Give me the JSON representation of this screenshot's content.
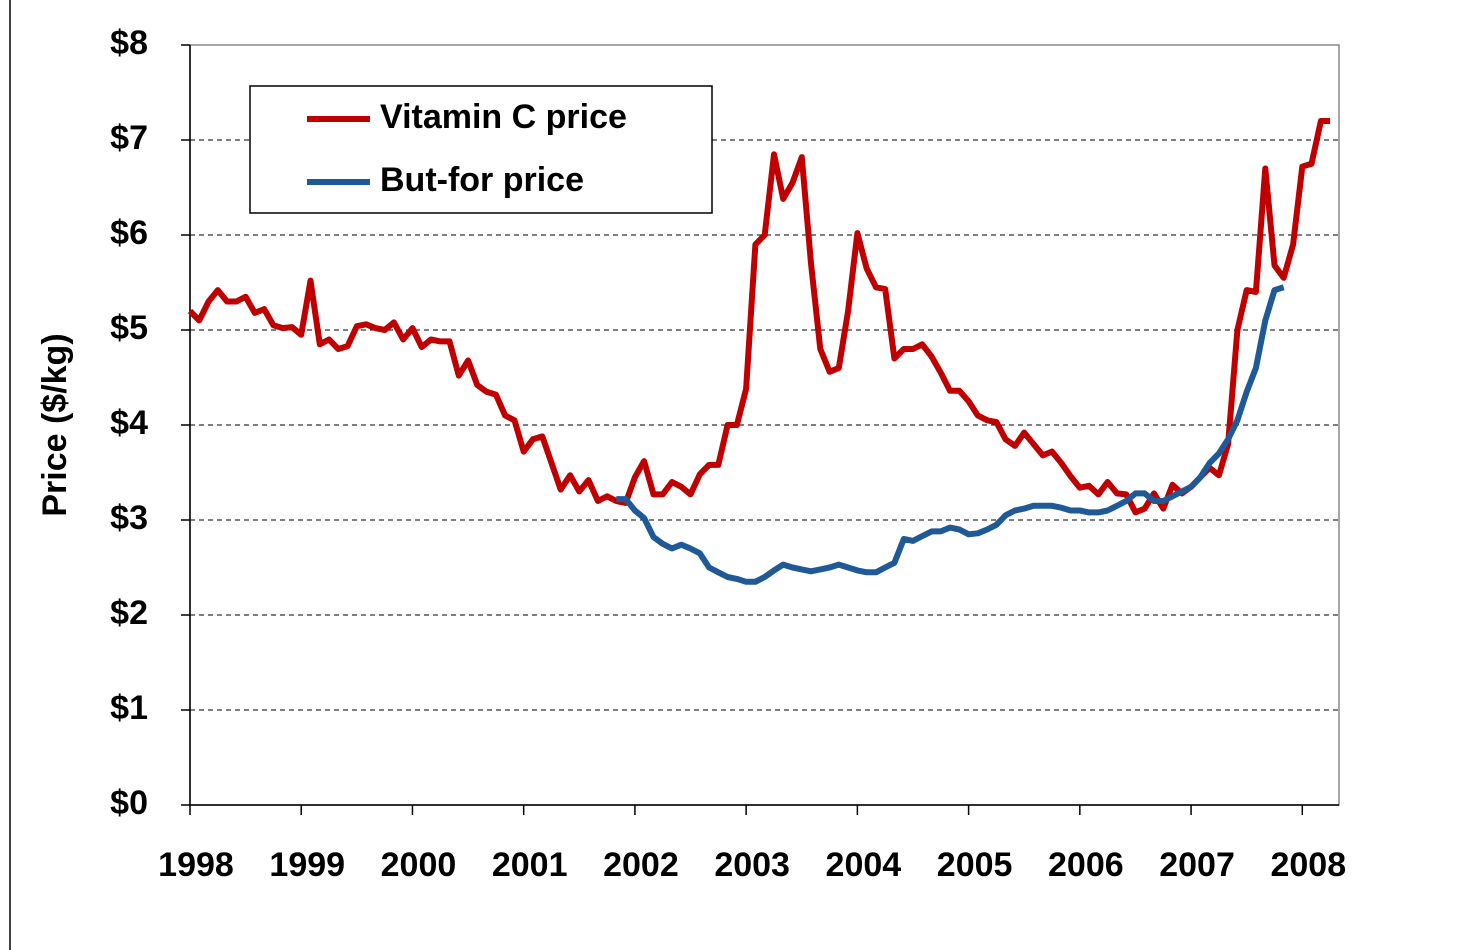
{
  "chart_data": {
    "type": "line",
    "x": [
      1998,
      1998.083,
      1998.167,
      1998.25,
      1998.333,
      1998.417,
      1998.5,
      1998.583,
      1998.667,
      1998.75,
      1998.833,
      1998.917,
      1999,
      1999.083,
      1999.167,
      1999.25,
      1999.333,
      1999.417,
      1999.5,
      1999.583,
      1999.667,
      1999.75,
      1999.833,
      1999.917,
      2000,
      2000.083,
      2000.167,
      2000.25,
      2000.333,
      2000.417,
      2000.5,
      2000.583,
      2000.667,
      2000.75,
      2000.833,
      2000.917,
      2001,
      2001.083,
      2001.167,
      2001.25,
      2001.333,
      2001.417,
      2001.5,
      2001.583,
      2001.667,
      2001.75,
      2001.833,
      2001.917,
      2002,
      2002.083,
      2002.167,
      2002.25,
      2002.333,
      2002.417,
      2002.5,
      2002.583,
      2002.667,
      2002.75,
      2002.833,
      2002.917,
      2003,
      2003.083,
      2003.167,
      2003.25,
      2003.333,
      2003.417,
      2003.5,
      2003.583,
      2003.667,
      2003.75,
      2003.833,
      2003.917,
      2004,
      2004.083,
      2004.167,
      2004.25,
      2004.333,
      2004.417,
      2004.5,
      2004.583,
      2004.667,
      2004.75,
      2004.833,
      2004.917,
      2005,
      2005.083,
      2005.167,
      2005.25,
      2005.333,
      2005.417,
      2005.5,
      2005.583,
      2005.667,
      2005.75,
      2005.833,
      2005.917,
      2006,
      2006.083,
      2006.167,
      2006.25,
      2006.333,
      2006.417,
      2006.5,
      2006.583,
      2006.667,
      2006.75,
      2006.833,
      2006.917,
      2007,
      2007.083,
      2007.167,
      2007.25,
      2007.333,
      2007.417,
      2007.5,
      2007.583,
      2007.667,
      2007.75,
      2007.833,
      2007.917,
      2008,
      2008.083,
      2008.167,
      2008.25
    ],
    "series": [
      {
        "name": "Vitamin C price",
        "color": "#c00000",
        "values": [
          5.2,
          5.1,
          5.3,
          5.42,
          5.3,
          5.3,
          5.35,
          5.18,
          5.22,
          5.05,
          5.02,
          5.03,
          4.95,
          5.52,
          4.85,
          4.9,
          4.8,
          4.83,
          5.04,
          5.06,
          5.02,
          5.0,
          5.08,
          4.9,
          5.02,
          4.82,
          4.9,
          4.88,
          4.88,
          4.52,
          4.68,
          4.42,
          4.35,
          4.32,
          4.1,
          4.05,
          3.72,
          3.85,
          3.88,
          3.6,
          3.32,
          3.47,
          3.3,
          3.42,
          3.2,
          3.25,
          3.2,
          3.18,
          3.45,
          3.62,
          3.27,
          3.27,
          3.4,
          3.35,
          3.27,
          3.48,
          3.58,
          3.58,
          4.0,
          4.0,
          4.38,
          5.9,
          6.0,
          6.85,
          6.38,
          6.55,
          6.82,
          5.7,
          4.8,
          4.56,
          4.6,
          5.2,
          6.02,
          5.65,
          5.45,
          5.43,
          4.7,
          4.8,
          4.8,
          4.85,
          4.72,
          4.55,
          4.36,
          4.36,
          4.25,
          4.1,
          4.05,
          4.03,
          3.85,
          3.78,
          3.92,
          3.8,
          3.68,
          3.72,
          3.6,
          3.46,
          3.34,
          3.36,
          3.27,
          3.4,
          3.28,
          3.27,
          3.08,
          3.12,
          3.28,
          3.12,
          3.37,
          3.28,
          3.35,
          3.45,
          3.55,
          3.47,
          3.8,
          5.0,
          5.42,
          5.4,
          6.7,
          5.68,
          5.55,
          5.9,
          6.72,
          6.75,
          7.2,
          7.2
        ]
      },
      {
        "name": "But-for price",
        "color": "#1f5a96",
        "values": [
          null,
          null,
          null,
          null,
          null,
          null,
          null,
          null,
          null,
          null,
          null,
          null,
          null,
          null,
          null,
          null,
          null,
          null,
          null,
          null,
          null,
          null,
          null,
          null,
          null,
          null,
          null,
          null,
          null,
          null,
          null,
          null,
          null,
          null,
          null,
          null,
          null,
          null,
          null,
          null,
          null,
          null,
          null,
          null,
          null,
          null,
          3.22,
          3.22,
          3.1,
          3.02,
          2.82,
          2.75,
          2.7,
          2.74,
          2.7,
          2.65,
          2.5,
          2.45,
          2.4,
          2.38,
          2.35,
          2.35,
          2.4,
          2.47,
          2.53,
          2.5,
          2.48,
          2.46,
          2.48,
          2.5,
          2.53,
          2.5,
          2.47,
          2.45,
          2.45,
          2.5,
          2.55,
          2.8,
          2.78,
          2.83,
          2.88,
          2.88,
          2.92,
          2.9,
          2.85,
          2.86,
          2.9,
          2.95,
          3.05,
          3.1,
          3.12,
          3.15,
          3.15,
          3.15,
          3.13,
          3.1,
          3.1,
          3.08,
          3.08,
          3.1,
          3.15,
          3.2,
          3.28,
          3.28,
          3.2,
          3.2,
          3.25,
          3.3,
          3.35,
          3.45,
          3.6,
          3.7,
          3.85,
          4.05,
          4.35,
          4.6,
          5.1,
          5.42,
          5.45,
          null,
          null,
          null,
          null,
          null
        ]
      }
    ],
    "y_axis_label": "Price ($/kg)",
    "xlim": [
      1998,
      2008.33
    ],
    "xticks": [
      1998,
      1999,
      2000,
      2001,
      2002,
      2003,
      2004,
      2005,
      2006,
      2007,
      2008
    ],
    "ylim": [
      0,
      8
    ],
    "yticks": [
      {
        "value": 0,
        "label": "$0"
      },
      {
        "value": 1,
        "label": "$1"
      },
      {
        "value": 2,
        "label": "$2"
      },
      {
        "value": 3,
        "label": "$3"
      },
      {
        "value": 4,
        "label": "$4"
      },
      {
        "value": 5,
        "label": "$5"
      },
      {
        "value": 6,
        "label": "$6"
      },
      {
        "value": 7,
        "label": "$7"
      },
      {
        "value": 8,
        "label": "$8"
      }
    ],
    "grid": true,
    "legend": "upper left"
  }
}
